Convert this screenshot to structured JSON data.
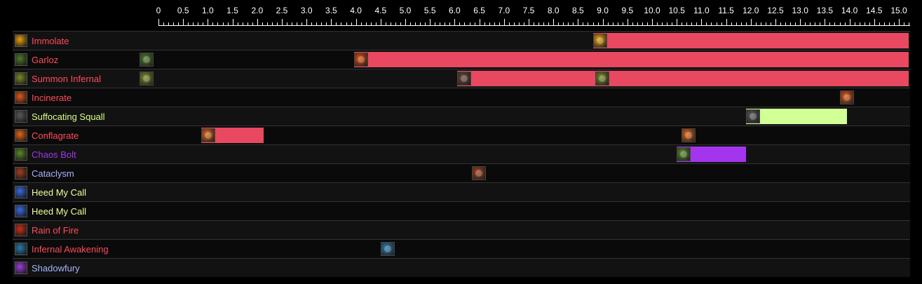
{
  "axis": {
    "ticks": [
      "0",
      "0.5",
      "1.0",
      "1.5",
      "2.0",
      "2.5",
      "3.0",
      "3.5",
      "4.0",
      "4.5",
      "5.0",
      "5.5",
      "6.0",
      "6.5",
      "7.0",
      "7.5",
      "8.0",
      "8.5",
      "9.0",
      "9.5",
      "10.0",
      "10.5",
      "11.0",
      "11.5",
      "12.0",
      "12.5",
      "13.0",
      "13.5",
      "14.0",
      "14.5",
      "15.0"
    ],
    "minor_per_major": 5,
    "max_seconds": 15.2
  },
  "rows": [
    {
      "label": "Immolate",
      "color": "#ff4c5a",
      "icon": "immolate-icon",
      "icon_color": "#e8a010",
      "bars": [
        {
          "start": 8.8,
          "end": 15.2,
          "color": "#e84960"
        }
      ],
      "casts": [
        {
          "t": 8.8,
          "icon_color": "#e8a010"
        }
      ]
    },
    {
      "label": "Garloz",
      "color": "#ff4c5a",
      "icon": "garloz-icon",
      "icon_color": "#4e7a2c",
      "bars": [
        {
          "start": 3.97,
          "end": 15.2,
          "color": "#e84960"
        }
      ],
      "casts": [
        {
          "t": -0.38,
          "icon_color": "#4e7a2c"
        },
        {
          "t": 3.97,
          "icon_color": "#e05010"
        }
      ]
    },
    {
      "label": "Summon Infernal",
      "color": "#ff4c5a",
      "icon": "summon-infernal-icon",
      "icon_color": "#7a8a2a",
      "bars": [
        {
          "start": 6.05,
          "end": 15.2,
          "color": "#e84960"
        }
      ],
      "casts": [
        {
          "t": -0.38,
          "icon_color": "#7a8a2a"
        },
        {
          "t": 6.05,
          "icon_color": "#6a4a3a"
        },
        {
          "t": 8.85,
          "icon_color": "#7a8a2a"
        }
      ]
    },
    {
      "label": "Incinerate",
      "color": "#ff4c5a",
      "icon": "incinerate-icon",
      "icon_color": "#e05818",
      "bars": [],
      "casts": [
        {
          "t": 13.8,
          "icon_color": "#e05818"
        }
      ]
    },
    {
      "label": "Suffocating Squall",
      "color": "#d8ff8a",
      "icon": "suffocating-squall-icon",
      "icon_color": "#5a5a5a",
      "bars": [
        {
          "start": 11.9,
          "end": 13.95,
          "color": "#d2ff96"
        }
      ],
      "casts": [
        {
          "t": 11.9,
          "icon_color": "#5a5a5a"
        }
      ]
    },
    {
      "label": "Conflagrate",
      "color": "#ff4c5a",
      "icon": "conflagrate-icon",
      "icon_color": "#e06818",
      "bars": [
        {
          "start": 0.87,
          "end": 2.13,
          "color": "#e84960"
        }
      ],
      "casts": [
        {
          "t": 0.87,
          "icon_color": "#e06818"
        },
        {
          "t": 10.6,
          "icon_color": "#e06818"
        }
      ]
    },
    {
      "label": "Chaos Bolt",
      "color": "#a335ee",
      "icon": "chaos-bolt-icon",
      "icon_color": "#5a8a2a",
      "bars": [
        {
          "start": 10.5,
          "end": 11.9,
          "color": "#a335ee"
        }
      ],
      "casts": [
        {
          "t": 10.5,
          "icon_color": "#5a8a2a"
        }
      ]
    },
    {
      "label": "Cataclysm",
      "color": "#a8b4ff",
      "icon": "cataclysm-icon",
      "icon_color": "#a04020",
      "bars": [],
      "casts": [
        {
          "t": 6.35,
          "icon_color": "#a04020"
        }
      ]
    },
    {
      "label": "Heed My Call",
      "color": "#f0ff9a",
      "icon": "heed-my-call-icon",
      "icon_color": "#3a6ae0",
      "bars": [],
      "casts": []
    },
    {
      "label": "Heed My Call",
      "color": "#f0ff9a",
      "icon": "heed-my-call-icon",
      "icon_color": "#3a6ae0",
      "bars": [],
      "casts": []
    },
    {
      "label": "Rain of Fire",
      "color": "#ff4c5a",
      "icon": "rain-of-fire-icon",
      "icon_color": "#c83018",
      "bars": [],
      "casts": []
    },
    {
      "label": "Infernal Awakening",
      "color": "#ff4c5a",
      "icon": "infernal-awakening-icon",
      "icon_color": "#2a7aa8",
      "bars": [],
      "casts": [
        {
          "t": 4.5,
          "icon_color": "#2a7aa8"
        }
      ]
    },
    {
      "label": "Shadowfury",
      "color": "#a8b4ff",
      "icon": "shadowfury-icon",
      "icon_color": "#9a40d8",
      "bars": [],
      "casts": []
    }
  ]
}
